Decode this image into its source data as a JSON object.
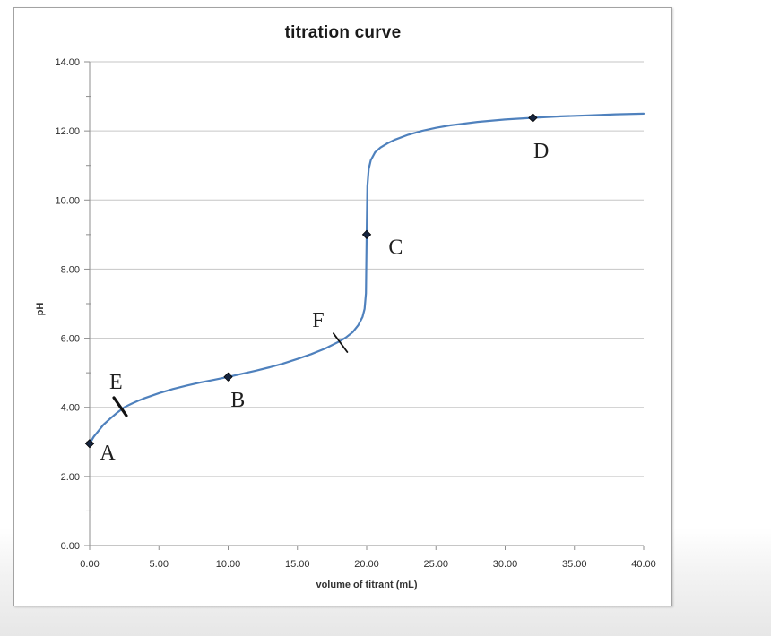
{
  "chart": {
    "title": "titration curve",
    "x_axis_label": "volume of titrant (mL)",
    "y_axis_label": "pH"
  },
  "chart_data": {
    "type": "line",
    "title": "titration curve",
    "xlabel": "volume of titrant (mL)",
    "ylabel": "pH",
    "xlim": [
      0,
      40
    ],
    "ylim": [
      0,
      14
    ],
    "grid": "horizontal-major",
    "legend": "none",
    "x_ticks": [
      {
        "v": 0,
        "label": "0.00"
      },
      {
        "v": 5,
        "label": "5.00"
      },
      {
        "v": 10,
        "label": "10.00"
      },
      {
        "v": 15,
        "label": "15.00"
      },
      {
        "v": 20,
        "label": "20.00"
      },
      {
        "v": 25,
        "label": "25.00"
      },
      {
        "v": 30,
        "label": "30.00"
      },
      {
        "v": 35,
        "label": "35.00"
      },
      {
        "v": 40,
        "label": "40.00"
      }
    ],
    "y_ticks": [
      {
        "v": 0,
        "label": "0.00"
      },
      {
        "v": 2,
        "label": "2.00"
      },
      {
        "v": 4,
        "label": "4.00"
      },
      {
        "v": 6,
        "label": "6.00"
      },
      {
        "v": 8,
        "label": "8.00"
      },
      {
        "v": 10,
        "label": "10.00"
      },
      {
        "v": 12,
        "label": "12.00"
      },
      {
        "v": 14,
        "label": "14.00"
      }
    ],
    "y_minor_ticks": [
      1,
      3,
      5,
      7,
      9,
      11,
      13
    ],
    "series": [
      {
        "name": "titration curve",
        "color": "#4f81bd",
        "points": [
          [
            0,
            2.95
          ],
          [
            0.3,
            3.15
          ],
          [
            0.6,
            3.3
          ],
          [
            1,
            3.5
          ],
          [
            1.5,
            3.68
          ],
          [
            2,
            3.85
          ],
          [
            2.5,
            4.0
          ],
          [
            3,
            4.1
          ],
          [
            3.5,
            4.19
          ],
          [
            4,
            4.27
          ],
          [
            5,
            4.41
          ],
          [
            6,
            4.53
          ],
          [
            7,
            4.63
          ],
          [
            8,
            4.72
          ],
          [
            9,
            4.8
          ],
          [
            10,
            4.88
          ],
          [
            11,
            4.97
          ],
          [
            12,
            5.06
          ],
          [
            13,
            5.16
          ],
          [
            14,
            5.27
          ],
          [
            15,
            5.4
          ],
          [
            16,
            5.54
          ],
          [
            17,
            5.7
          ],
          [
            18,
            5.9
          ],
          [
            18.5,
            6.02
          ],
          [
            19,
            6.18
          ],
          [
            19.4,
            6.38
          ],
          [
            19.7,
            6.62
          ],
          [
            19.85,
            6.85
          ],
          [
            19.95,
            7.3
          ],
          [
            20,
            9.0
          ],
          [
            20.05,
            10.4
          ],
          [
            20.15,
            10.9
          ],
          [
            20.3,
            11.15
          ],
          [
            20.6,
            11.38
          ],
          [
            21,
            11.52
          ],
          [
            21.5,
            11.64
          ],
          [
            22,
            11.74
          ],
          [
            23,
            11.89
          ],
          [
            24,
            12.0
          ],
          [
            25,
            12.09
          ],
          [
            26,
            12.16
          ],
          [
            28,
            12.26
          ],
          [
            30,
            12.33
          ],
          [
            32,
            12.38
          ],
          [
            34,
            12.42
          ],
          [
            36,
            12.45
          ],
          [
            38,
            12.48
          ],
          [
            40,
            12.5
          ]
        ]
      }
    ],
    "labeled_points": [
      {
        "label": "A",
        "x": 0,
        "y": 2.95,
        "marker": "diamond",
        "label_x": 1.3,
        "label_y": 2.7
      },
      {
        "label": "B",
        "x": 10,
        "y": 4.88,
        "marker": "diamond",
        "label_x": 10.7,
        "label_y": 4.23
      },
      {
        "label": "C",
        "x": 20,
        "y": 9.0,
        "marker": "diamond",
        "label_x": 22.1,
        "label_y": 8.65
      },
      {
        "label": "D",
        "x": 32,
        "y": 12.38,
        "marker": "diamond",
        "label_x": 32.6,
        "label_y": 11.43
      }
    ],
    "tick_annotations": [
      {
        "label": "E",
        "x1": 1.75,
        "y1": 4.28,
        "x2": 2.65,
        "y2": 3.76,
        "stroke_width": 3.2,
        "label_x": 1.9,
        "label_y": 4.74
      },
      {
        "label": "F",
        "x1": 17.6,
        "y1": 6.14,
        "x2": 18.6,
        "y2": 5.6,
        "stroke_width": 1.8,
        "label_x": 16.5,
        "label_y": 6.53
      }
    ],
    "colors": {
      "curve": "#4f81bd",
      "gridline": "#c6c6c6",
      "axis": "#8e8e8e",
      "marker_fill": "#16253f",
      "marker_stroke": "#000000",
      "annotation": "#111111",
      "tick_text": "#2e2e2e",
      "letter_text": "#1f1f1f"
    }
  }
}
